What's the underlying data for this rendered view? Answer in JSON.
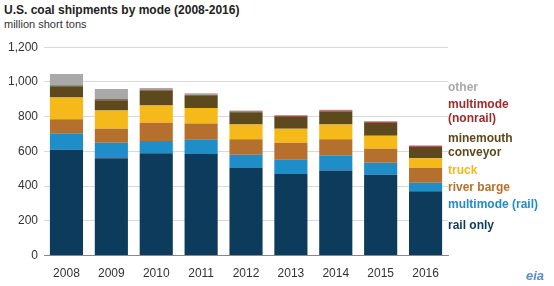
{
  "chart_data": {
    "type": "bar",
    "stacked": true,
    "grid": true,
    "title": "U.S. coal shipments by mode (2008-2016)",
    "subtitle": "million short tons",
    "annotations": [
      "eia"
    ],
    "categories": [
      "2008",
      "2009",
      "2010",
      "2011",
      "2012",
      "2013",
      "2014",
      "2015",
      "2016"
    ],
    "series": [
      {
        "name": "rail only",
        "color": "#0d3b5c",
        "values": [
          610,
          560,
          590,
          585,
          505,
          470,
          490,
          465,
          370
        ]
      },
      {
        "name": "multimode (rail)",
        "color": "#1e8dc8",
        "values": [
          95,
          90,
          70,
          85,
          75,
          85,
          85,
          70,
          50
        ]
      },
      {
        "name": "river barge",
        "color": "#b5702e",
        "values": [
          80,
          80,
          105,
          90,
          90,
          95,
          95,
          80,
          85
        ]
      },
      {
        "name": "truck",
        "color": "#f6b91a",
        "values": [
          125,
          105,
          100,
          90,
          85,
          80,
          85,
          75,
          55
        ]
      },
      {
        "name": "minemouth conveyor",
        "color": "#5c4a1e",
        "values": [
          65,
          60,
          85,
          70,
          70,
          70,
          75,
          75,
          65
        ]
      },
      {
        "name": "multimode (nonrail)",
        "color": "#9e2a2b",
        "values": [
          5,
          5,
          5,
          5,
          5,
          5,
          5,
          5,
          5
        ]
      },
      {
        "name": "other",
        "color": "#a9a9a9",
        "values": [
          65,
          60,
          10,
          10,
          5,
          5,
          5,
          5,
          5
        ]
      }
    ],
    "ylim": [
      0,
      1200
    ],
    "yticks": [
      0,
      200,
      400,
      600,
      800,
      {
        "value": 1000,
        "label": "1,000"
      },
      {
        "value": 1200,
        "label": "1,200"
      }
    ]
  }
}
